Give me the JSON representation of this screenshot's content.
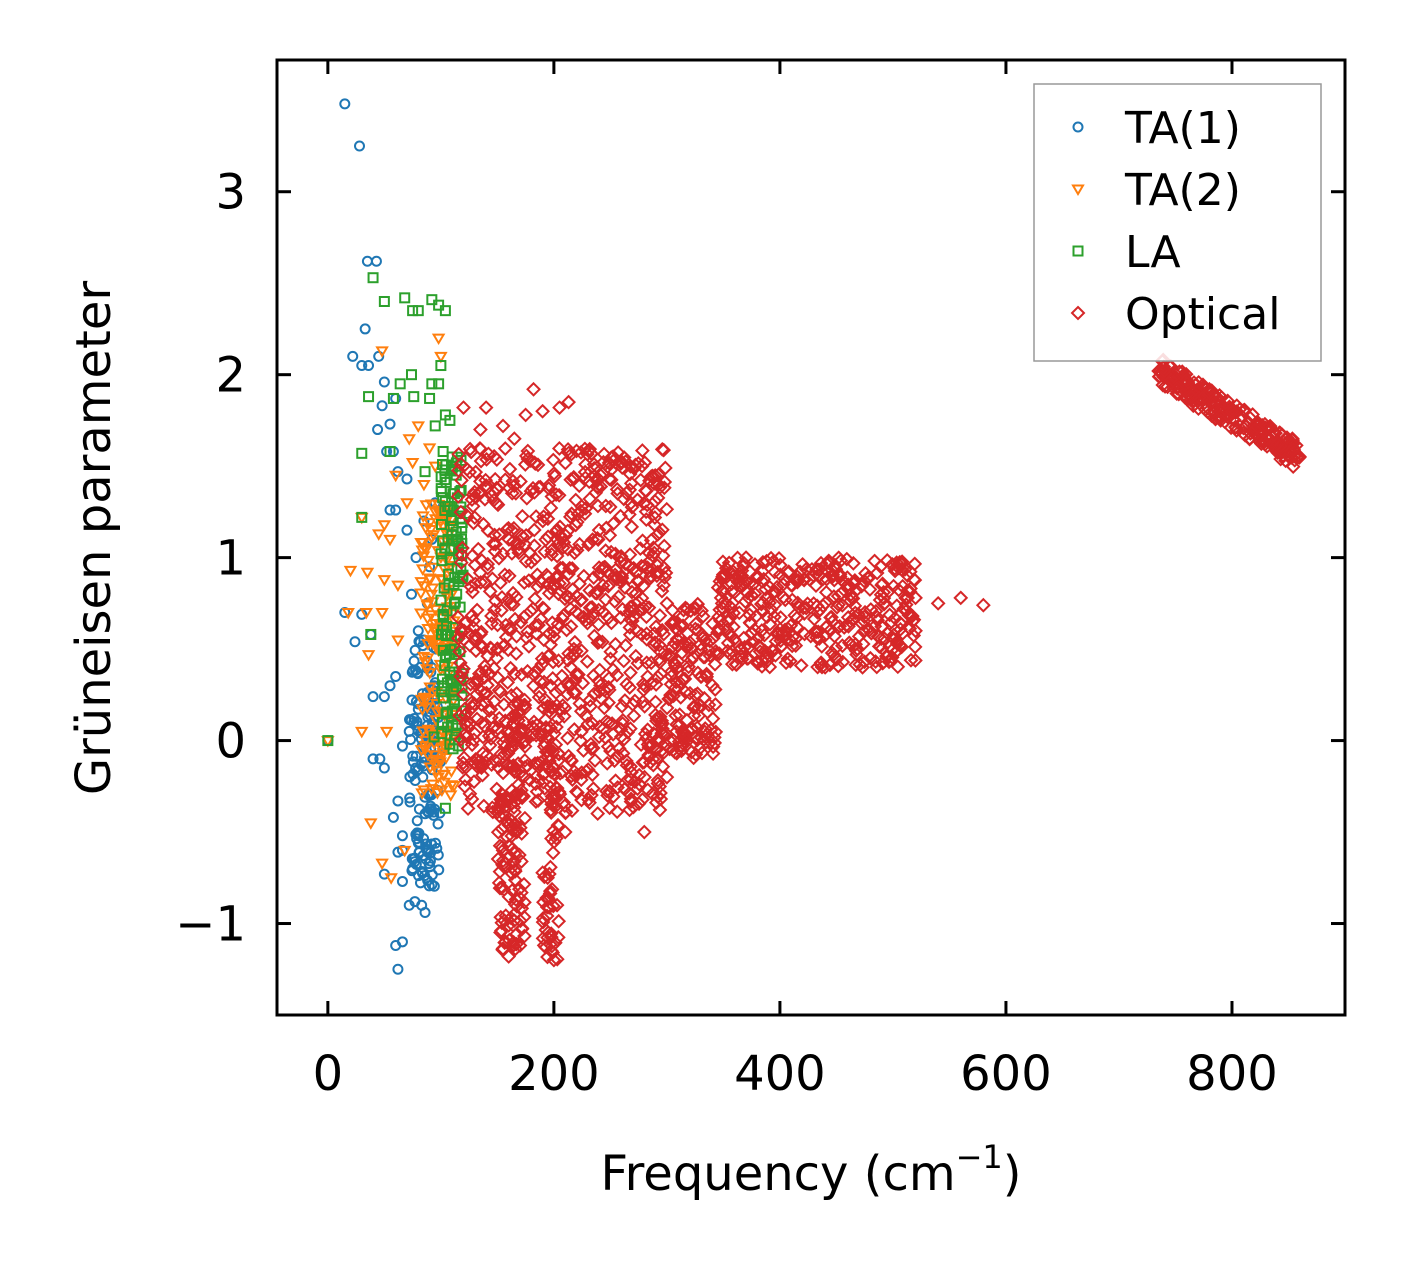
{
  "chart_data": {
    "type": "scatter",
    "title": "",
    "xlabel": "Frequency (cm",
    "xlabel_superscript": "−1",
    "xlabel_suffix": ")",
    "ylabel": "Grüneisen parameter",
    "xlim": [
      -45,
      900
    ],
    "ylim": [
      -1.5,
      3.72
    ],
    "xticks": [
      0,
      200,
      400,
      600,
      800
    ],
    "xtick_labels": [
      "0",
      "200",
      "400",
      "600",
      "800"
    ],
    "yticks": [
      -1,
      0,
      1,
      2,
      3
    ],
    "ytick_labels": [
      "−1",
      "0",
      "1",
      "2",
      "3"
    ],
    "grid": false,
    "legend_position": "top-right",
    "series": [
      {
        "name": "TA(1)",
        "marker": "circle",
        "color": "#1f77b4",
        "points": [
          [
            0,
            0
          ],
          [
            15,
            3.48
          ],
          [
            28,
            3.25
          ],
          [
            35,
            2.62
          ],
          [
            43,
            2.62
          ],
          [
            33,
            2.25
          ],
          [
            22,
            2.1
          ],
          [
            30,
            2.05
          ],
          [
            36,
            2.05
          ],
          [
            45,
            2.1
          ],
          [
            50,
            1.96
          ],
          [
            60,
            1.87
          ],
          [
            48,
            1.83
          ],
          [
            44,
            1.7
          ],
          [
            55,
            1.73
          ],
          [
            52,
            1.58
          ],
          [
            58,
            1.58
          ],
          [
            62,
            1.47
          ],
          [
            70,
            1.43
          ],
          [
            55,
            1.26
          ],
          [
            60,
            1.26
          ],
          [
            15,
            0.7
          ],
          [
            24,
            0.54
          ],
          [
            30,
            0.69
          ],
          [
            38,
            0.58
          ],
          [
            40,
            0.24
          ],
          [
            50,
            0.24
          ],
          [
            55,
            0.3
          ],
          [
            60,
            0.35
          ],
          [
            46,
            -0.1
          ],
          [
            40,
            -0.1
          ],
          [
            50,
            -0.15
          ],
          [
            62,
            -0.33
          ],
          [
            58,
            -0.42
          ],
          [
            66,
            -0.52
          ],
          [
            62,
            -0.61
          ],
          [
            66,
            -0.6
          ],
          [
            50,
            -0.73
          ],
          [
            66,
            -0.77
          ],
          [
            75,
            -0.7
          ],
          [
            72,
            -0.9
          ],
          [
            77,
            -0.88
          ],
          [
            83,
            -0.9
          ],
          [
            86,
            -0.94
          ],
          [
            66,
            -1.1
          ],
          [
            60,
            -1.12
          ],
          [
            62,
            -1.25
          ],
          [
            66,
            -0.03
          ],
          [
            72,
            0.05
          ],
          [
            76,
            0.1
          ],
          [
            80,
            0.2
          ],
          [
            82,
            0.4
          ],
          [
            85,
            0.55
          ],
          [
            88,
            0.75
          ],
          [
            90,
            0.95
          ],
          [
            92,
            1.1
          ],
          [
            95,
            1.3
          ],
          [
            78,
            1.0
          ],
          [
            74,
            0.8
          ],
          [
            80,
            0.6
          ],
          [
            84,
            -0.2
          ],
          [
            86,
            -0.4
          ],
          [
            88,
            -0.6
          ],
          [
            90,
            -0.3
          ],
          [
            92,
            0.0
          ],
          [
            94,
            0.3
          ],
          [
            96,
            0.5
          ],
          [
            85,
            1.2
          ],
          [
            70,
            1.15
          ]
        ],
        "dense_regions": [
          {
            "x": [
              72,
              100
            ],
            "y": [
              -0.8,
              0.55
            ]
          }
        ]
      },
      {
        "name": "TA(2)",
        "marker": "triangle-down",
        "color": "#ff7f0e",
        "points": [
          [
            0,
            0
          ],
          [
            48,
            2.13
          ],
          [
            98,
            2.2
          ],
          [
            100,
            2.1
          ],
          [
            72,
            1.65
          ],
          [
            80,
            1.72
          ],
          [
            90,
            1.6
          ],
          [
            60,
            1.45
          ],
          [
            75,
            1.52
          ],
          [
            30,
            1.22
          ],
          [
            45,
            1.13
          ],
          [
            50,
            1.18
          ],
          [
            55,
            1.1
          ],
          [
            20,
            0.93
          ],
          [
            35,
            0.92
          ],
          [
            50,
            0.88
          ],
          [
            62,
            0.85
          ],
          [
            18,
            0.7
          ],
          [
            34,
            0.7
          ],
          [
            48,
            0.7
          ],
          [
            36,
            0.47
          ],
          [
            62,
            0.55
          ],
          [
            30,
            0.05
          ],
          [
            52,
            0.05
          ],
          [
            38,
            -0.45
          ],
          [
            48,
            -0.67
          ],
          [
            56,
            -0.75
          ],
          [
            68,
            -0.6
          ],
          [
            70,
            1.3
          ],
          [
            85,
            1.4
          ],
          [
            95,
            1.5
          ],
          [
            100,
            1.2
          ],
          [
            104,
            1.0
          ],
          [
            106,
            0.8
          ]
        ],
        "dense_regions": [
          {
            "x": [
              82,
              112
            ],
            "y": [
              -0.3,
              1.3
            ]
          }
        ]
      },
      {
        "name": "LA",
        "marker": "square",
        "color": "#2ca02c",
        "points": [
          [
            0,
            0
          ],
          [
            40,
            2.53
          ],
          [
            50,
            2.4
          ],
          [
            68,
            2.42
          ],
          [
            75,
            2.35
          ],
          [
            80,
            2.35
          ],
          [
            92,
            2.41
          ],
          [
            98,
            2.38
          ],
          [
            104,
            2.35
          ],
          [
            36,
            1.88
          ],
          [
            58,
            1.87
          ],
          [
            64,
            1.95
          ],
          [
            74,
            2.0
          ],
          [
            76,
            1.88
          ],
          [
            90,
            1.87
          ],
          [
            92,
            1.95
          ],
          [
            98,
            1.95
          ],
          [
            100,
            2.05
          ],
          [
            104,
            1.78
          ],
          [
            108,
            1.75
          ],
          [
            102,
            1.58
          ],
          [
            110,
            1.55
          ],
          [
            95,
            1.72
          ],
          [
            86,
            1.47
          ],
          [
            30,
            1.57
          ],
          [
            55,
            1.58
          ],
          [
            30,
            1.22
          ],
          [
            38,
            0.58
          ],
          [
            94,
            0.02
          ],
          [
            104,
            -0.37
          ],
          [
            108,
            -0.02
          ],
          [
            112,
            0.2
          ],
          [
            112,
            0.5
          ],
          [
            114,
            0.8
          ],
          [
            114,
            1.1
          ],
          [
            112,
            1.35
          ]
        ],
        "dense_regions": [
          {
            "x": [
              100,
              120
            ],
            "y": [
              -0.1,
              1.55
            ]
          }
        ]
      },
      {
        "name": "Optical",
        "marker": "diamond",
        "color": "#d62728",
        "points": [
          [
            120,
            1.82
          ],
          [
            135,
            1.7
          ],
          [
            140,
            1.82
          ],
          [
            155,
            1.72
          ],
          [
            165,
            1.65
          ],
          [
            175,
            1.78
          ],
          [
            182,
            1.92
          ],
          [
            190,
            1.8
          ],
          [
            205,
            1.82
          ],
          [
            213,
            1.85
          ],
          [
            240,
            1.15
          ],
          [
            260,
            0.9
          ],
          [
            300,
            0.75
          ],
          [
            310,
            0.55
          ],
          [
            330,
            0.35
          ],
          [
            350,
            0.9
          ],
          [
            370,
            1.0
          ],
          [
            380,
            0.9
          ],
          [
            410,
            0.85
          ],
          [
            430,
            0.9
          ],
          [
            460,
            0.85
          ],
          [
            490,
            0.85
          ],
          [
            520,
            0.78
          ],
          [
            540,
            0.75
          ],
          [
            560,
            0.78
          ],
          [
            580,
            0.74
          ],
          [
            520,
            0.6
          ],
          [
            500,
            0.5
          ],
          [
            480,
            0.45
          ],
          [
            440,
            0.4
          ],
          [
            160,
            -1.18
          ],
          [
            170,
            -1.12
          ],
          [
            165,
            -0.95
          ],
          [
            200,
            -1.2
          ],
          [
            198,
            -1.15
          ],
          [
            195,
            -1.05
          ],
          [
            155,
            -0.6
          ],
          [
            210,
            -0.5
          ],
          [
            280,
            -0.5
          ],
          [
            300,
            -0.2
          ],
          [
            320,
            -0.05
          ],
          [
            740,
            2.02
          ],
          [
            760,
            1.97
          ],
          [
            780,
            1.9
          ],
          [
            800,
            1.8
          ],
          [
            820,
            1.7
          ],
          [
            840,
            1.62
          ],
          [
            858,
            1.55
          ],
          [
            790,
            1.75
          ],
          [
            810,
            1.68
          ]
        ],
        "dense_regions": [
          {
            "x": [
              115,
              300
            ],
            "y": [
              -0.4,
              1.6
            ]
          },
          {
            "x": [
              150,
              175
            ],
            "y": [
              -1.15,
              0.2
            ]
          },
          {
            "x": [
              190,
              205
            ],
            "y": [
              -1.2,
              0.2
            ]
          },
          {
            "x": [
              300,
              345
            ],
            "y": [
              -0.1,
              0.75
            ]
          },
          {
            "x": [
              345,
              520
            ],
            "y": [
              0.4,
              1.0
            ]
          },
          {
            "x": [
              735,
              860
            ],
            "y": [
              1.55,
              2.04
            ]
          }
        ]
      }
    ]
  }
}
